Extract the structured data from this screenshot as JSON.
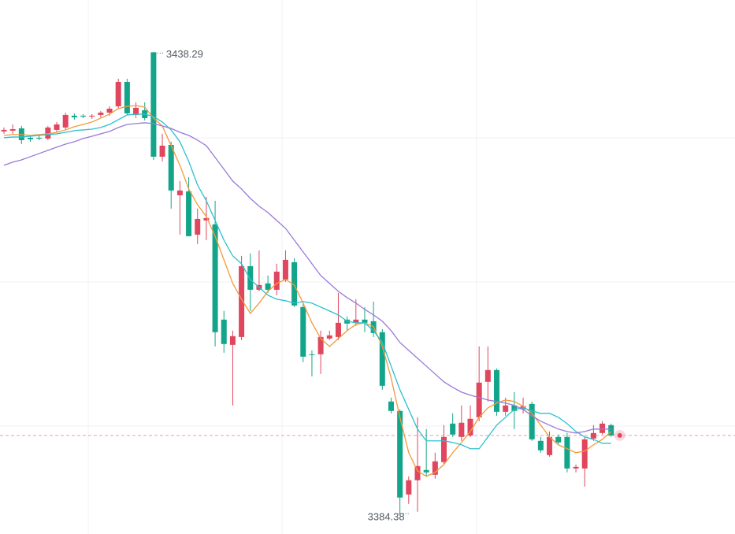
{
  "chart_data": {
    "type": "candlestick",
    "ylim": [
      3382,
      3444.4
    ],
    "grid": true,
    "up_color": "#e0465e",
    "down_color": "#13a589",
    "candles": {
      "open": [
        3429.04,
        3429.13,
        3429.4,
        3428.3,
        3428.3,
        3428.21,
        3429.22,
        3429.5,
        3430.88,
        3430.88,
        3430.78,
        3430.97,
        3431.24,
        3431.98,
        3434.83,
        3430.97,
        3431.52,
        3438.29,
        3426.09,
        3427.47,
        3421.58,
        3422.04,
        3416.98,
        3418.64,
        3418.18,
        3407.05,
        3404.1,
        3405.02,
        3413.3,
        3410.54,
        3411.28,
        3410.54,
        3411.74,
        3413.76,
        3408.52,
        3403.0,
        3403.0,
        3404.84,
        3405.02,
        3407.05,
        3406.68,
        3407.05,
        3406.86,
        3405.58,
        3397.48,
        3396.38,
        3386.62,
        3388.28,
        3389.48,
        3388.92,
        3390.4,
        3394.9,
        3393.34,
        3393.52,
        3395.64,
        3399.78,
        3401.16,
        3396.28,
        3397.02,
        3396.56,
        3397.2,
        3392.88,
        3391.22,
        3393.34,
        3393.34,
        3389.66,
        3389.66,
        3393.16,
        3393.8,
        3394.72
      ],
      "high": [
        3429.5,
        3429.86,
        3429.68,
        3428.58,
        3428.58,
        3429.68,
        3430.14,
        3431.24,
        3431.15,
        3431.06,
        3431.06,
        3431.43,
        3431.98,
        3435.2,
        3435.2,
        3432.44,
        3432.44,
        3438.29,
        3428.76,
        3427.84,
        3423.24,
        3423.7,
        3420.02,
        3421.4,
        3420.94,
        3408.06,
        3405.76,
        3414.5,
        3414.78,
        3415.14,
        3412.2,
        3413.58,
        3415.14,
        3414.22,
        3408.98,
        3403.46,
        3405.76,
        3405.76,
        3410.18,
        3407.42,
        3409.44,
        3408.52,
        3409.16,
        3405.94,
        3397.94,
        3396.56,
        3388.74,
        3395.64,
        3394.26,
        3391.5,
        3394.72,
        3396.1,
        3397.02,
        3397.02,
        3403.92,
        3403.92,
        3401.34,
        3397.94,
        3398.58,
        3397.94,
        3397.48,
        3393.34,
        3393.98,
        3393.62,
        3393.8,
        3390.12,
        3393.34,
        3394.72,
        3395.18,
        3394.9
      ],
      "low": [
        3428.76,
        3428.76,
        3427.56,
        3427.84,
        3428.02,
        3428.02,
        3428.94,
        3429.22,
        3430.42,
        3430.6,
        3430.51,
        3430.69,
        3430.88,
        3431.7,
        3430.97,
        3430.6,
        3430.32,
        3425.72,
        3425.54,
        3420.02,
        3416.98,
        3416.8,
        3415.88,
        3416.34,
        3403.92,
        3403.18,
        3397.02,
        3404.66,
        3408.06,
        3410.36,
        3410.18,
        3409.9,
        3411.46,
        3408.52,
        3402.08,
        3400.42,
        3400.7,
        3404.66,
        3404.66,
        3405.76,
        3406.31,
        3405.58,
        3405.02,
        3398.86,
        3396.1,
        3384.38,
        3385.52,
        3384.6,
        3388.74,
        3388.46,
        3390.12,
        3393.34,
        3392.88,
        3393.34,
        3395.18,
        3397.48,
        3395.82,
        3395.82,
        3394.26,
        3396.1,
        3392.88,
        3391.5,
        3391.04,
        3392.42,
        3389.2,
        3389.2,
        3387.54,
        3392.88,
        3393.62,
        3393.34
      ],
      "close": [
        3429.22,
        3429.31,
        3428.02,
        3428.12,
        3428.21,
        3429.5,
        3429.86,
        3430.97,
        3430.69,
        3430.78,
        3430.88,
        3431.24,
        3431.7,
        3434.83,
        3431.15,
        3431.8,
        3430.6,
        3426.09,
        3427.38,
        3422.14,
        3422.14,
        3416.8,
        3418.82,
        3418.92,
        3405.58,
        3404.2,
        3405.12,
        3413.3,
        3410.54,
        3411.1,
        3410.54,
        3412.66,
        3414.04,
        3408.7,
        3402.72,
        3402.91,
        3405.02,
        3405.21,
        3406.68,
        3406.59,
        3407.05,
        3406.68,
        3405.48,
        3399.32,
        3396.38,
        3386.26,
        3388.28,
        3389.94,
        3389.2,
        3390.49,
        3393.34,
        3393.62,
        3395.0,
        3395.46,
        3399.69,
        3401.16,
        3396.28,
        3397.02,
        3396.38,
        3396.93,
        3393.06,
        3391.78,
        3393.34,
        3392.7,
        3389.66,
        3389.84,
        3393.06,
        3393.8,
        3394.9,
        3393.52
      ]
    },
    "series": [
      {
        "color": "#f39a3a",
        "values": [
          3428.58,
          3428.67,
          3428.67,
          3428.58,
          3428.67,
          3428.76,
          3428.94,
          3429.22,
          3429.59,
          3429.86,
          3430.14,
          3430.6,
          3431.06,
          3431.7,
          3431.98,
          3432.07,
          3431.89,
          3430.6,
          3429.68,
          3427.38,
          3425.08,
          3422.32,
          3420.48,
          3419.1,
          3416.8,
          3414.04,
          3411.28,
          3409.44,
          3407.78,
          3408.98,
          3410.36,
          3411.28,
          3411.74,
          3411.1,
          3408.98,
          3406.68,
          3404.84,
          3403.92,
          3404.84,
          3405.76,
          3406.5,
          3406.68,
          3406.22,
          3403.92,
          3400.24,
          3395.64,
          3391.5,
          3389.38,
          3388.74,
          3389.2,
          3390.12,
          3391.5,
          3392.7,
          3393.98,
          3395.64,
          3396.74,
          3397.3,
          3397.66,
          3397.48,
          3396.93,
          3396.1,
          3394.72,
          3393.34,
          3392.42,
          3391.96,
          3391.5,
          3391.68,
          3392.42,
          3393.06,
          3393.98
        ]
      },
      {
        "color": "#2cc0cf",
        "values": [
          3428.3,
          3428.39,
          3428.39,
          3428.48,
          3428.58,
          3428.67,
          3428.76,
          3428.94,
          3429.13,
          3429.22,
          3429.31,
          3429.5,
          3429.86,
          3430.42,
          3430.97,
          3431.06,
          3431.06,
          3430.78,
          3430.14,
          3429.22,
          3427.84,
          3425.54,
          3422.78,
          3420.94,
          3418.64,
          3416.34,
          3414.5,
          3413.58,
          3411.74,
          3410.82,
          3409.9,
          3409.44,
          3409.26,
          3408.98,
          3409.16,
          3408.98,
          3408.52,
          3408.06,
          3407.6,
          3406.86,
          3406.68,
          3406.68,
          3405.76,
          3404.38,
          3401.62,
          3398.86,
          3396.56,
          3394.26,
          3392.88,
          3392.88,
          3392.88,
          3392.7,
          3392.42,
          3391.96,
          3391.96,
          3393.34,
          3394.72,
          3395.64,
          3396.56,
          3396.74,
          3396.38,
          3396.1,
          3396.1,
          3395.64,
          3394.9,
          3393.98,
          3393.34,
          3393.06,
          3392.6,
          3392.6
        ]
      },
      {
        "color": "#9a7ad6",
        "values": [
          3425.08,
          3425.45,
          3425.72,
          3426.09,
          3426.46,
          3426.83,
          3427.2,
          3427.56,
          3427.84,
          3428.21,
          3428.48,
          3428.76,
          3429.04,
          3429.5,
          3429.86,
          3429.96,
          3430.05,
          3429.96,
          3429.68,
          3429.4,
          3428.94,
          3428.58,
          3428.02,
          3427.38,
          3426.0,
          3424.62,
          3423.24,
          3422.32,
          3421.22,
          3420.3,
          3419.56,
          3418.64,
          3417.72,
          3416.34,
          3414.96,
          3413.58,
          3412.2,
          3411.28,
          3410.36,
          3409.62,
          3408.98,
          3408.24,
          3407.6,
          3406.86,
          3405.76,
          3404.38,
          3403.46,
          3402.54,
          3401.62,
          3400.7,
          3399.78,
          3399.14,
          3398.58,
          3398.22,
          3397.94,
          3397.66,
          3397.48,
          3397.3,
          3397.02,
          3396.56,
          3395.82,
          3395.18,
          3394.72,
          3394.26,
          3393.98,
          3393.8,
          3393.98,
          3394.26,
          3394.26,
          3394.26
        ]
      }
    ]
  }
}
